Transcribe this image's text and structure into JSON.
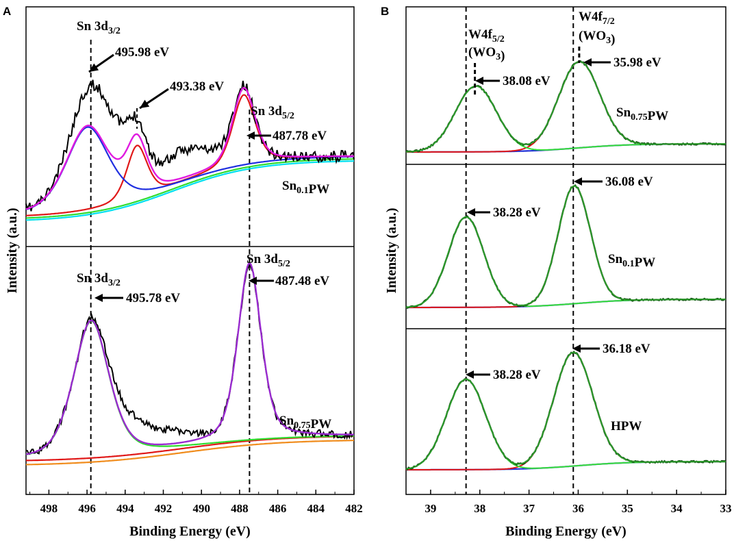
{
  "colors": {
    "raw": "#000000",
    "fit_magenta": "#e01be0",
    "fit_blue": "#1f2fe0",
    "fit_red": "#e01818",
    "bg_green": "#2fdc2f",
    "bg_cyan": "#00e0f0",
    "fit_purple": "#9a2bd0",
    "bg_orange": "#f08c1c",
    "envelope_dark": "#0f4a0f",
    "fit_darkgreen": "#2d9b2d",
    "fit_lightgreen": "#38e038",
    "baseline_blue": "#1e2fd6"
  },
  "chart_data": [
    {
      "panel": "A",
      "type": "line",
      "xlabel": "Binding Energy (eV)",
      "ylabel": "Intensity (a.u.)",
      "xlim": [
        499.2,
        482
      ],
      "xticks": [
        498,
        496,
        494,
        492,
        490,
        488,
        486,
        484,
        482
      ],
      "tick_labels": [
        "498",
        "496",
        "494",
        "492",
        "490",
        "488",
        "486",
        "484",
        "482"
      ],
      "reference_lines_eV": [
        495.8,
        487.48
      ],
      "subplots": [
        {
          "sample": "Sn",
          "sample_sub": "0.1",
          "sample_suffix": "PW",
          "peaks": [
            {
              "name": "Sn 3d3/2",
              "label": "495.98 eV",
              "center": 495.98
            },
            {
              "name": "",
              "label": "493.38 eV",
              "center": 493.38
            },
            {
              "name": "Sn 3d5/2",
              "label": "487.78 eV",
              "center": 487.78
            }
          ],
          "title_labels": [
            {
              "main": "Sn 3d",
              "sub": "3/2"
            },
            {
              "main": "Sn 3d",
              "sub": "5/2"
            }
          ],
          "series": [
            {
              "name": "raw",
              "color_key": "raw"
            },
            {
              "name": "envelope",
              "color_key": "fit_magenta"
            },
            {
              "name": "component 495.98",
              "color_key": "fit_blue"
            },
            {
              "name": "component 493.38",
              "color_key": "fit_red"
            },
            {
              "name": "background 1",
              "color_key": "bg_green"
            },
            {
              "name": "background 2",
              "color_key": "bg_cyan"
            }
          ]
        },
        {
          "sample": "Sn",
          "sample_sub": "0.75",
          "sample_suffix": "PW",
          "peaks": [
            {
              "name": "Sn 3d3/2",
              "label": "495.78 eV",
              "center": 495.78
            },
            {
              "name": "Sn 3d5/2",
              "label": "487.48 eV",
              "center": 487.48
            }
          ],
          "title_labels": [
            {
              "main": "Sn 3d",
              "sub": "3/2"
            },
            {
              "main": "Sn 3d",
              "sub": "5/2"
            }
          ],
          "series": [
            {
              "name": "raw",
              "color_key": "raw"
            },
            {
              "name": "envelope",
              "color_key": "fit_purple"
            },
            {
              "name": "component",
              "color_key": "bg_green"
            },
            {
              "name": "background 1",
              "color_key": "fit_red"
            },
            {
              "name": "background 2",
              "color_key": "bg_orange"
            }
          ]
        }
      ]
    },
    {
      "panel": "B",
      "type": "line",
      "xlabel": "Binding Energy (eV)",
      "ylabel": "Intensity (a.u.)",
      "xlim": [
        39.5,
        33
      ],
      "xticks": [
        39,
        38,
        37,
        36,
        35,
        34,
        33
      ],
      "tick_labels": [
        "39",
        "38",
        "37",
        "36",
        "35",
        "34",
        "33"
      ],
      "reference_lines_eV": [
        38.28,
        36.1
      ],
      "header_labels": [
        {
          "line1": "W4f",
          "line1_sub": "5/2",
          "line2": "(WO",
          "line2_sub": "3",
          "line2_end": ")"
        },
        {
          "line1": "W4f",
          "line1_sub": "7/2",
          "line2": "(WO",
          "line2_sub": "3",
          "line2_end": ")"
        }
      ],
      "subplots": [
        {
          "sample": "Sn",
          "sample_sub": "0.75",
          "sample_suffix": "PW",
          "peaks": [
            {
              "label": "38.08 eV",
              "center": 38.08
            },
            {
              "label": "35.98 eV",
              "center": 35.98
            }
          ]
        },
        {
          "sample": "Sn",
          "sample_sub": "0.1",
          "sample_suffix": "PW",
          "peaks": [
            {
              "label": "38.28 eV",
              "center": 38.28
            },
            {
              "label": "36.08 eV",
              "center": 36.08
            }
          ]
        },
        {
          "sample": "HPW",
          "sample_sub": "",
          "sample_suffix": "",
          "peaks": [
            {
              "label": "38.28 eV",
              "center": 38.28
            },
            {
              "label": "36.18 eV",
              "center": 36.18
            }
          ]
        }
      ]
    }
  ]
}
